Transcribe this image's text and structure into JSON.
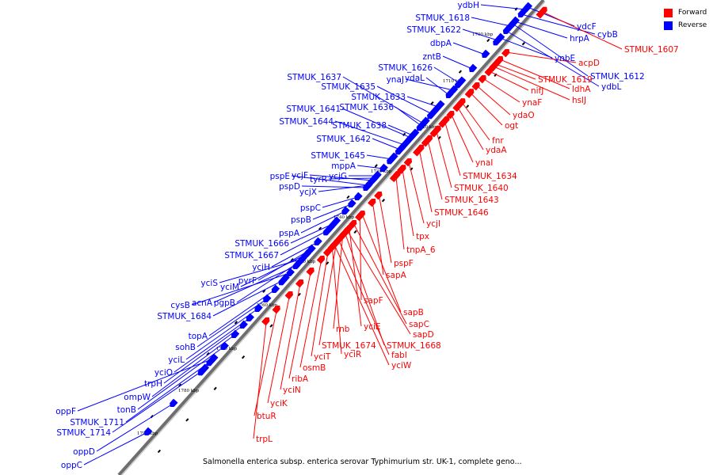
{
  "legend": {
    "forward_label": "Forward",
    "reverse_label": "Reverse",
    "forward_color": "#ff0000",
    "reverse_color": "#0000ff"
  },
  "caption": "Salmonella enterica subsp. enterica serovar Typhimurium str. UK-1, complete geno...",
  "colors": {
    "backbone": "#6e6e6e",
    "forward": "#ff0000",
    "reverse": "#0000ff"
  },
  "kbp_ticks": [
    "1700 kbp",
    "1710 kbp",
    "1720 kbp",
    "1730 kbp",
    "1740 kbp",
    "1750 kbp",
    "1760 kbp",
    "1770 kbp",
    "1780 kbp",
    "1790 kbp"
  ],
  "genes": {
    "reverse": [
      "ydbH",
      "STMUK_1618",
      "STMUK_1622",
      "dbpA",
      "zntB",
      "STMUK_1626",
      "ynaJ",
      "ydaL",
      "STMUK_1637",
      "STMUK_1635",
      "STMUK_1633",
      "STMUK_1641",
      "STMUK_1636",
      "STMUK_1644",
      "STMUK_1638",
      "STMUK_1642",
      "STMUK_1645",
      "mppA",
      "ycjG",
      "pspE",
      "ycjF",
      "tyrR",
      "pspD",
      "ycjX",
      "pspC",
      "pspB",
      "pspA",
      "STMUK_1666",
      "STMUK_1667",
      "yciH",
      "yciS",
      "yciM",
      "pyrF",
      "acnA",
      "pgpB",
      "cysB",
      "STMUK_1684",
      "topA",
      "sohB",
      "yciL",
      "yciO",
      "trpH",
      "ompW",
      "tonB",
      "oppF",
      "STMUK_1711",
      "STMUK_1714",
      "oppD",
      "oppC",
      "ydcF",
      "cybB",
      "hrpA",
      "ynbE",
      "STMUK_1612",
      "ydbL"
    ],
    "forward": [
      "STMUK_1607",
      "acpD",
      "STMUK_1619",
      "nifJ",
      "ldhA",
      "hslJ",
      "ynaF",
      "ydaO",
      "ogt",
      "fnr",
      "ydaA",
      "ynaI",
      "STMUK_1634",
      "STMUK_1640",
      "STMUK_1643",
      "STMUK_1646",
      "ycjI",
      "tpx",
      "tnpA_6",
      "pspF",
      "sapA",
      "sapF",
      "sapB",
      "sapC",
      "sapD",
      "rnb",
      "yciE",
      "STMUK_1674",
      "STMUK_1668",
      "yciT",
      "yciR",
      "fabI",
      "osmB",
      "yciW",
      "ribA",
      "yciN",
      "yciK",
      "btuR",
      "trpL"
    ]
  }
}
